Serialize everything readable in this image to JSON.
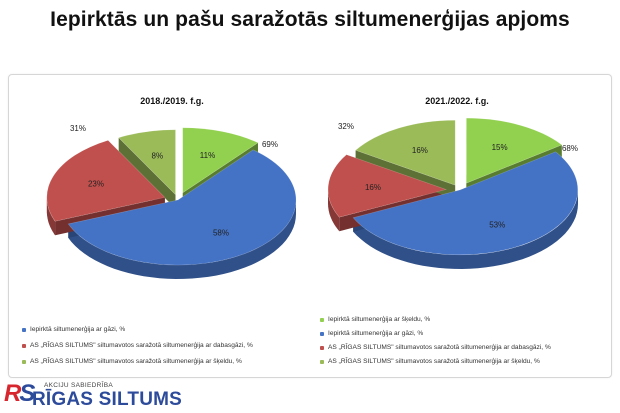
{
  "title": "Iepirktās un pašu saražotās siltumenerģijas apjoms",
  "colors": {
    "blue": "#4472c4",
    "red": "#c0504d",
    "green": "#9bbb59",
    "text": "#111111"
  },
  "chart_data": [
    {
      "type": "pie",
      "title": "2018./2019. f.g.",
      "slices": [
        {
          "name": "Iepirktā siltumenerģija ar šķeldu, %",
          "value": 11,
          "label": "11%",
          "color": "#92d050"
        },
        {
          "name": "Iepirktā siltumenerģija ar gāzi, %",
          "value": 58,
          "label": "58%",
          "color": "#4472c4"
        },
        {
          "name": "AS \"RĪGAS SILTUMS\" siltumavotos saražotā siltumenerģija ar dabasgāzi, %",
          "value": 23,
          "label": "23%",
          "color": "#c0504d"
        },
        {
          "name": "AS \"RĪGAS SILTUMS\" siltumavotos saražotā siltumenerģija ar šķeldu, %",
          "value": 8,
          "label": "8%",
          "color": "#9bbb59"
        }
      ],
      "group_labels": [
        {
          "text": "69%",
          "side": "right"
        },
        {
          "text": "31%",
          "side": "left"
        }
      ],
      "legend": [
        {
          "text": "Iepirktā siltumenerģija ar gāzi, %",
          "color": "#4472c4"
        },
        {
          "text": "AS „RĪGAS SILTUMS\" siltumavotos saražotā siltumenerģija ar dabasgāzi, %",
          "color": "#c0504d"
        },
        {
          "text": "AS „RĪGAS SILTUMS\" siltumavotos saražotā siltumenerģija ar šķeldu, %",
          "color": "#9bbb59"
        }
      ]
    },
    {
      "type": "pie",
      "title": "2021./2022. f.g.",
      "slices": [
        {
          "name": "Iepirktā siltumenerģija ar šķeldu, %",
          "value": 15,
          "label": "15%",
          "color": "#92d050"
        },
        {
          "name": "Iepirktā siltumenerģija ar gāzi, %",
          "value": 53,
          "label": "53%",
          "color": "#4472c4"
        },
        {
          "name": "AS \"RĪGAS SILTUMS\" siltumavotos saražotā siltumenerģija ar dabasgāzi, %",
          "value": 16,
          "label": "16%",
          "color": "#c0504d"
        },
        {
          "name": "AS \"RĪGAS SILTUMS\" siltumavotos saražotā siltumenerģija ar šķeldu, %",
          "value": 16,
          "label": "16%",
          "color": "#9bbb59"
        }
      ],
      "group_labels": [
        {
          "text": "68%",
          "side": "right"
        },
        {
          "text": "32%",
          "side": "left"
        }
      ],
      "legend": [
        {
          "text": "Iepirktā siltumenerģija ar šķeldu, %",
          "color": "#92d050"
        },
        {
          "text": "Iepirktā siltumenerģija ar gāzi, %",
          "color": "#4472c4"
        },
        {
          "text": "AS „RĪGAS SILTUMS\" siltumavotos saražotā siltumenerģija ar dabasgāzi, %",
          "color": "#c0504d"
        },
        {
          "text": "AS „RĪGAS SILTUMS\" siltumavotos saražotā siltumenerģija ar šķeldu, %",
          "color": "#9bbb59"
        }
      ]
    }
  ],
  "logo": {
    "mark_r": "R",
    "mark_s": "S",
    "small_text": "AKCIJU SABIEDRĪBA",
    "big_text": "RĪGAS SILTUMS"
  }
}
